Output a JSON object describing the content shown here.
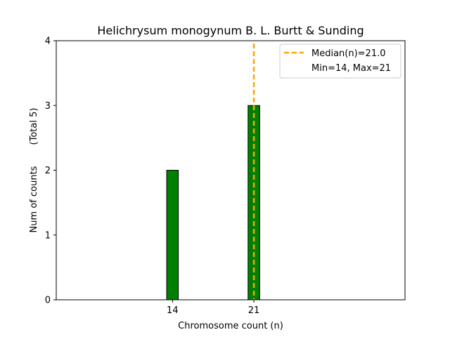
{
  "chart_data": {
    "type": "bar",
    "title": "Helichrysum monogynum B. L. Burtt & Sunding",
    "xlabel": "Chromosome count (n)",
    "ylabel": "Num of counts",
    "ylabel_note": "(Total 5)",
    "ylim": [
      0,
      4
    ],
    "xlim": [
      4,
      34
    ],
    "yticks": [
      "0",
      "1",
      "2",
      "3",
      "4"
    ],
    "categories": [
      "14",
      "21"
    ],
    "values": [
      2,
      3
    ],
    "bar_color": "#008000",
    "bar_edge_color": "#000000",
    "median": 21.0,
    "median_color": "#FFA500",
    "legend": {
      "placement": "top-right",
      "entries": [
        "Median(n)=21.0",
        "Min=14, Max=21"
      ]
    },
    "grid": false
  }
}
